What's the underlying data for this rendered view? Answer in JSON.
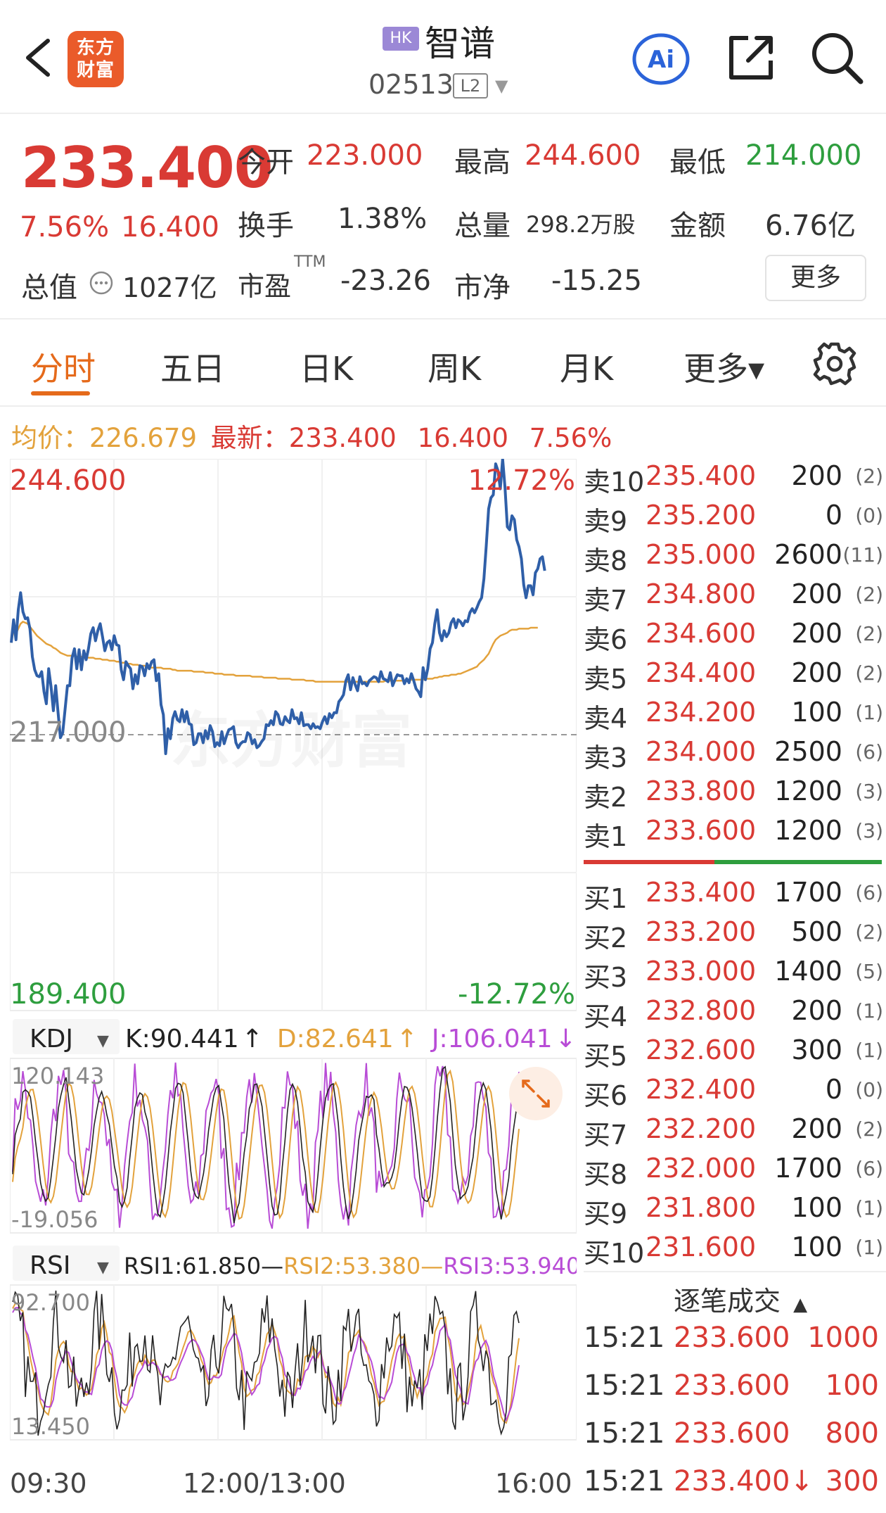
{
  "header": {
    "logo_line1": "东方",
    "logo_line2": "财富",
    "market_badge": "HK",
    "stock_name": "智谱",
    "stock_code": "02513",
    "level_badge": "L2",
    "ai_label": "Ai",
    "icons": [
      "back-icon",
      "ai-icon",
      "share-icon",
      "search-icon"
    ]
  },
  "quote": {
    "price": "233.400",
    "change_pct": "7.56%",
    "change": "16.400",
    "open_label": "今开",
    "open": "223.000",
    "high_label": "最高",
    "high": "244.600",
    "low_label": "最低",
    "low": "214.000",
    "turnover_label": "换手",
    "turnover": "1.38%",
    "volume_label": "总量",
    "volume": "298.2万股",
    "amount_label": "金额",
    "amount": "6.76亿",
    "mktcap_label": "总值",
    "mktcap": "1027亿",
    "pe_label": "市盈",
    "pe_sup": "TTM",
    "pe": "-23.26",
    "pb_label": "市净",
    "pb": "-15.25",
    "more_button": "更多"
  },
  "tabs": [
    {
      "label": "分时",
      "active": true
    },
    {
      "label": "五日"
    },
    {
      "label": "日K"
    },
    {
      "label": "周K"
    },
    {
      "label": "月K"
    },
    {
      "label": "更多▾"
    }
  ],
  "avg_row": {
    "avg_label": "均价：",
    "avg_value": "226.679",
    "latest_label": "最新：",
    "latest_value": "233.400",
    "latest_change": "16.400",
    "latest_pct": "7.56%"
  },
  "chart_data": {
    "type": "line",
    "price_axis": {
      "top": "244.600",
      "base": "217.000",
      "bottom": "189.400"
    },
    "pct_axis": {
      "top": "12.72%",
      "bottom": "-12.72%"
    },
    "time_axis": [
      "09:30",
      "12:00/13:00",
      "16:00"
    ],
    "series": [
      {
        "values": [
          226.2,
          228.5,
          226.5,
          229.5,
          231.2,
          229.3,
          228.6,
          228.7,
          227.6,
          224.8,
          223.5,
          222.9,
          222.8,
          223.3,
          221.3,
          220.1,
          223.6,
          221.8,
          219.4,
          221.9,
          219.2,
          216.7,
          217.2,
          219.5,
          221.9,
          221.9,
          224.7,
          225.6,
          223.6,
          225.5,
          223.5,
          225.4,
          224.5,
          225.6,
          227.1,
          227.7,
          226.4,
          227.4,
          228.1,
          226.8,
          225.4,
          226.2,
          226.4,
          225.5,
          226.9,
          226.0,
          225.9,
          223.5,
          222.5,
          224.3,
          223.9,
          223.6,
          221.6,
          223.0,
          222.1,
          223.9,
          223.8,
          222.9,
          224.1,
          223.6,
          224.3,
          224.5,
          222.4,
          223.1,
          220.0,
          219.0,
          215.1,
          217.6,
          216.6,
          218.6,
          219.3,
          218.5,
          218.3,
          219.5,
          218.3,
          219.3,
          218.1,
          218.0,
          216.0,
          216.2,
          217.1,
          217.1,
          216.2,
          217.4,
          216.6,
          217.9,
          217.3,
          215.8,
          216.2,
          215.9,
          217.3,
          216.1,
          216.9,
          217.5,
          217.6,
          217.8,
          216.2,
          215.7,
          216.1,
          216.3,
          216.3,
          217.2,
          217.0,
          216.1,
          216.5,
          215.7,
          215.9,
          216.3,
          216.6,
          218.0,
          217.9,
          218.4,
          218.0,
          219.3,
          219.0,
          218.1,
          218.0,
          218.8,
          218.4,
          218.2,
          219.5,
          218.6,
          218.7,
          218.1,
          219.2,
          217.9,
          218.0,
          218.0,
          217.6,
          218.1,
          217.7,
          217.8,
          217.6,
          218.3,
          218.8,
          218.1,
          219.1,
          218.7,
          219.2,
          219.2,
          220.3,
          220.6,
          221.0,
          222.4,
          223.0,
          221.5,
          222.7,
          222.0,
          221.4,
          222.8,
          222.1,
          222.2,
          221.9,
          222.4,
          222.6,
          222.8,
          222.7,
          222.3,
          223.3,
          222.6,
          222.5,
          222.3,
          223.2,
          221.9,
          222.5,
          223.0,
          222.9,
          222.9,
          222.1,
          222.6,
          222.2,
          223.1,
          222.4,
          221.6,
          221.3,
          220.8,
          223.7,
          222.5,
          223.6,
          225.6,
          226.2,
          228.1,
          229.5,
          227.2,
          226.4,
          227.4,
          226.8,
          227.2,
          228.2,
          228.6,
          227.7,
          228.5,
          228.3,
          227.9,
          228.4,
          228.3,
          229.2,
          229.6,
          229.2,
          229.7,
          230.3,
          230.7,
          232.6,
          235.9,
          239.6,
          240.7,
          241.0,
          244.1,
          243.4,
          241.6,
          244.6,
          241.7,
          237.8,
          237.5,
          238.9,
          238.5,
          236.5,
          235.8,
          234.6,
          232.0,
          230.7,
          231.9,
          231.9,
          231.0,
          233.2,
          233.6,
          234.6,
          234.8,
          233.4
        ]
      },
      {
        "values": [
          226.2,
          227.4,
          227.1,
          227.6,
          228.1,
          228.3,
          228.2,
          228.1,
          227.8,
          227.5,
          227.2,
          226.9,
          226.7,
          226.5,
          226.3,
          226.1,
          226.0,
          225.9,
          225.7,
          225.6,
          225.4,
          225.2,
          225.1,
          225.0,
          224.9,
          224.9,
          224.9,
          224.9,
          224.8,
          224.8,
          224.8,
          224.8,
          224.8,
          224.7,
          224.7,
          224.7,
          224.6,
          224.6,
          224.6,
          224.5,
          224.5,
          224.5,
          224.4,
          224.4,
          224.4,
          224.3,
          224.3,
          224.2,
          224.2,
          224.2,
          224.1,
          224.1,
          224.0,
          224.0,
          224.0,
          223.9,
          223.9,
          223.9,
          223.8,
          223.8,
          223.7,
          223.7,
          223.7,
          223.7,
          223.7,
          223.6,
          223.6,
          223.6,
          223.6,
          223.5,
          223.5,
          223.4,
          223.4,
          223.4,
          223.4,
          223.4,
          223.4,
          223.4,
          223.3,
          223.3,
          223.3,
          223.3,
          223.3,
          223.2,
          223.2,
          223.2,
          223.2,
          223.1,
          223.1,
          223.1,
          223.1,
          223.0,
          223.0,
          223.0,
          223.0,
          223.0,
          222.9,
          222.9,
          222.9,
          222.9,
          222.9,
          222.9,
          222.9,
          222.8,
          222.8,
          222.8,
          222.8,
          222.8,
          222.7,
          222.7,
          222.7,
          222.7,
          222.7,
          222.7,
          222.6,
          222.6,
          222.6,
          222.6,
          222.6,
          222.6,
          222.5,
          222.5,
          222.5,
          222.5,
          222.5,
          222.5,
          222.4,
          222.4,
          222.4,
          222.4,
          222.3,
          222.3,
          222.3,
          222.3,
          222.3,
          222.3,
          222.3,
          222.3,
          222.3,
          222.3,
          222.3,
          222.3,
          222.3,
          222.3,
          222.3,
          222.3,
          222.3,
          222.3,
          222.3,
          222.3,
          222.3,
          222.3,
          222.3,
          222.3,
          222.3,
          222.3,
          222.3,
          222.3,
          222.3,
          222.3,
          222.4,
          222.4,
          222.4,
          222.4,
          222.4,
          222.4,
          222.4,
          222.4,
          222.4,
          222.4,
          222.4,
          222.5,
          222.5,
          222.5,
          222.5,
          222.5,
          222.5,
          222.6,
          222.6,
          222.6,
          222.6,
          222.7,
          222.7,
          222.8,
          222.8,
          222.9,
          222.9,
          222.9,
          223.0,
          223.0,
          223.0,
          223.1,
          223.1,
          223.2,
          223.3,
          223.4,
          223.5,
          223.6,
          223.7,
          223.8,
          224.1,
          224.3,
          224.5,
          224.8,
          225.1,
          225.6,
          226.1,
          226.5,
          226.7,
          226.9,
          227.0,
          227.1,
          227.2,
          227.4,
          227.5,
          227.5,
          227.5,
          227.6,
          227.6,
          227.6,
          227.6,
          227.6,
          227.7,
          227.7,
          227.7,
          227.7
        ]
      }
    ]
  },
  "kdj": {
    "selector": "KDJ",
    "k": "K:90.441",
    "d": "D:82.641",
    "j": "J:106.041",
    "up_arrow": "↑",
    "down_arrow": "↓",
    "axis_top": "120.143",
    "axis_bottom": "-19.056"
  },
  "rsi": {
    "selector": "RSI",
    "rsi1": "RSI1:61.850",
    "rsi2": "RSI2:53.380",
    "rsi3": "RSI3:53.940",
    "dash": "—",
    "axis_top": "92.700",
    "axis_bottom": "13.450"
  },
  "order_book": {
    "asks": [
      {
        "label": "卖10",
        "price": "235.400",
        "volume": "200",
        "count": "(2)"
      },
      {
        "label": "卖9",
        "price": "235.200",
        "volume": "0",
        "count": "(0)"
      },
      {
        "label": "卖8",
        "price": "235.000",
        "volume": "2600",
        "count": "(11)"
      },
      {
        "label": "卖7",
        "price": "234.800",
        "volume": "200",
        "count": "(2)"
      },
      {
        "label": "卖6",
        "price": "234.600",
        "volume": "200",
        "count": "(2)"
      },
      {
        "label": "卖5",
        "price": "234.400",
        "volume": "200",
        "count": "(2)"
      },
      {
        "label": "卖4",
        "price": "234.200",
        "volume": "100",
        "count": "(1)"
      },
      {
        "label": "卖3",
        "price": "234.000",
        "volume": "2500",
        "count": "(6)"
      },
      {
        "label": "卖2",
        "price": "233.800",
        "volume": "1200",
        "count": "(3)"
      },
      {
        "label": "卖1",
        "price": "233.600",
        "volume": "1200",
        "count": "(3)"
      }
    ],
    "bids": [
      {
        "label": "买1",
        "price": "233.400",
        "volume": "1700",
        "count": "(6)"
      },
      {
        "label": "买2",
        "price": "233.200",
        "volume": "500",
        "count": "(2)"
      },
      {
        "label": "买3",
        "price": "233.000",
        "volume": "1400",
        "count": "(5)"
      },
      {
        "label": "买4",
        "price": "232.800",
        "volume": "200",
        "count": "(1)"
      },
      {
        "label": "买5",
        "price": "232.600",
        "volume": "300",
        "count": "(1)"
      },
      {
        "label": "买6",
        "price": "232.400",
        "volume": "0",
        "count": "(0)"
      },
      {
        "label": "买7",
        "price": "232.200",
        "volume": "200",
        "count": "(2)"
      },
      {
        "label": "买8",
        "price": "232.000",
        "volume": "1700",
        "count": "(6)"
      },
      {
        "label": "买9",
        "price": "231.800",
        "volume": "100",
        "count": "(1)"
      },
      {
        "label": "买10",
        "price": "231.600",
        "volume": "100",
        "count": "(1)"
      }
    ]
  },
  "trades": {
    "title": "逐笔成交",
    "rows": [
      {
        "time": "15:21",
        "price": "233.600",
        "volume": "1000"
      },
      {
        "time": "15:21",
        "price": "233.600",
        "volume": "100"
      },
      {
        "time": "15:21",
        "price": "233.600",
        "volume": "800"
      },
      {
        "time": "15:21",
        "price": "233.400↓",
        "volume": "300"
      }
    ]
  },
  "watermark": "东方财富",
  "colors": {
    "up": "#d93a34",
    "down": "#2e9e3e",
    "price_line": "#2f5fa8",
    "avg_line": "#e3a23c",
    "accent": "#e56a1b",
    "kdj_k": "#222222",
    "kdj_d": "#e3a23c",
    "kdj_j": "#b84cd6"
  }
}
